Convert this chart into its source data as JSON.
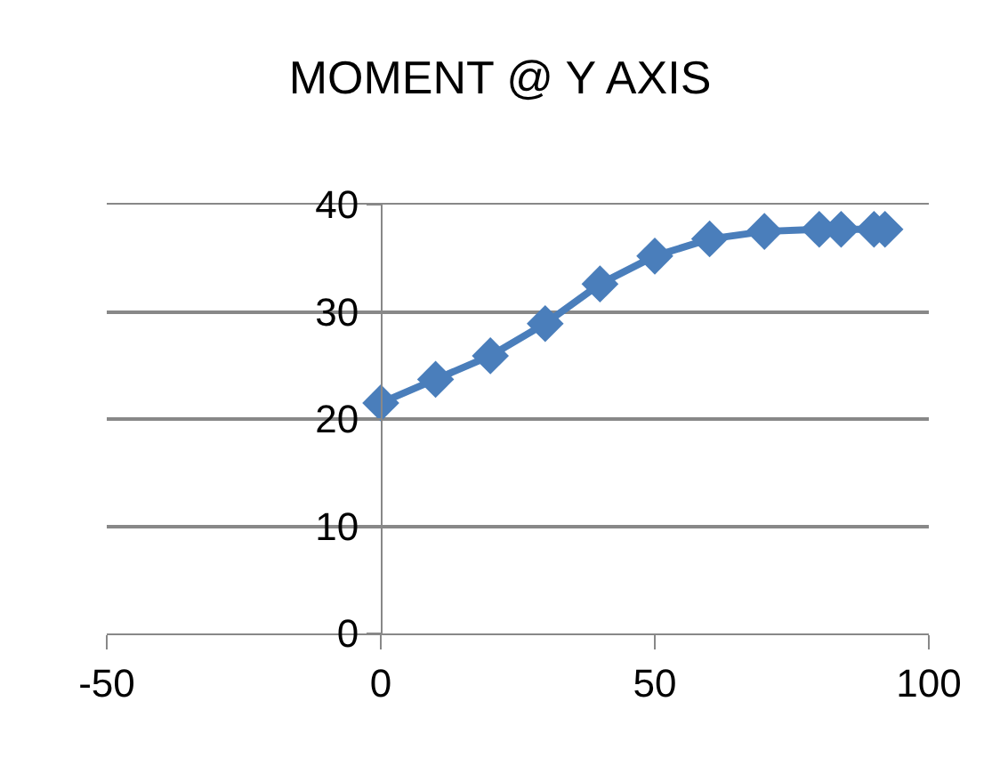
{
  "chart_data": {
    "type": "line",
    "title": "MOMENT @ Y AXIS",
    "x": [
      0,
      10,
      20,
      30,
      40,
      50,
      60,
      70,
      80,
      84,
      90,
      92
    ],
    "series": [
      {
        "color": "#4a7ebb",
        "values": [
          21.5,
          23.7,
          25.9,
          28.9,
          32.6,
          35.2,
          36.8,
          37.5,
          37.7,
          37.7,
          37.7,
          37.7
        ]
      }
    ],
    "xlim": [
      -50,
      100
    ],
    "xticks": [
      -50,
      0,
      50,
      100
    ],
    "ylim": [
      0,
      40
    ],
    "yticks": [
      0,
      10,
      20,
      30,
      40
    ],
    "grid": "y",
    "marker": "diamond",
    "line_style": "solid"
  }
}
